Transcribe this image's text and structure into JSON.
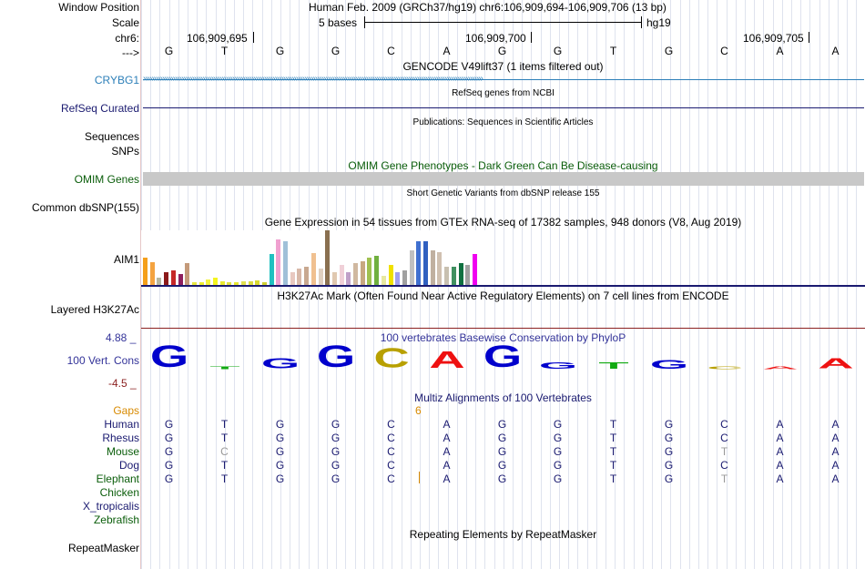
{
  "header": {
    "window_position_label": "Window Position",
    "scale_label": "Scale",
    "chrom_label": "chr6:",
    "strand_label": "--->",
    "assembly_text": "Human Feb. 2009 (GRCh37/hg19)   chr6:106,909,694-106,909,706 (13 bp)",
    "scale_text": "5 bases",
    "scale_db": "hg19",
    "coords": [
      "106,909,695",
      "106,909,700",
      "106,909,705"
    ]
  },
  "bases": [
    "G",
    "T",
    "G",
    "G",
    "C",
    "A",
    "G",
    "G",
    "T",
    "G",
    "C",
    "A",
    "A"
  ],
  "tracks": {
    "gencode_title": "GENCODE V49lift37 (1 items filtered out)",
    "gene_label": "CRYBG1",
    "refseq_title": "RefSeq genes from NCBI",
    "refseq_label": "RefSeq Curated",
    "pubs_title": "Publications: Sequences in Scientific Articles",
    "sequences_label": "Sequences",
    "snps_label": "SNPs",
    "omim_title": "OMIM Gene Phenotypes - Dark Green Can Be Disease-causing",
    "omim_label": "OMIM Genes",
    "dbsnp_title": "Short Genetic Variants from dbSNP release 155",
    "dbsnp_label": "Common dbSNP(155)",
    "gtex_title": "Gene Expression in 54 tissues from GTEx RNA-seq of 17382 samples, 948 donors (V8, Aug 2019)",
    "gtex_label": "AIM1",
    "h3k27_title": "H3K27Ac Mark (Often Found Near Active Regulatory Elements) on 7 cell lines from ENCODE",
    "h3k27_label": "Layered H3K27Ac",
    "cons_title": "100 vertebrates Basewise Conservation by PhyloP",
    "cons_label": "100 Vert. Cons",
    "cons_max": "4.88 _",
    "cons_min": "-4.5 _",
    "multiz_title": "Multiz Alignments of 100 Vertebrates",
    "gaps_label": "Gaps",
    "gap_count": "6",
    "repeat_title": "Repeating Elements by RepeatMasker",
    "repeat_label": "RepeatMasker"
  },
  "species": [
    {
      "name": "Human",
      "seq": [
        "G",
        "T",
        "G",
        "G",
        "C",
        "A",
        "G",
        "G",
        "T",
        "G",
        "C",
        "A",
        "A"
      ]
    },
    {
      "name": "Rhesus",
      "seq": [
        "G",
        "T",
        "G",
        "G",
        "C",
        "A",
        "G",
        "G",
        "T",
        "G",
        "C",
        "A",
        "A"
      ]
    },
    {
      "name": "Mouse",
      "seq": [
        "G",
        "C",
        "G",
        "G",
        "C",
        "A",
        "G",
        "G",
        "T",
        "G",
        "T",
        "A",
        "A"
      ]
    },
    {
      "name": "Dog",
      "seq": [
        "G",
        "T",
        "G",
        "G",
        "C",
        "A",
        "G",
        "G",
        "T",
        "G",
        "C",
        "A",
        "A"
      ]
    },
    {
      "name": "Elephant",
      "seq": [
        "G",
        "T",
        "G",
        "G",
        "C",
        "A",
        "G",
        "G",
        "T",
        "G",
        "T",
        "A",
        "A"
      ]
    },
    {
      "name": "Chicken",
      "seq": []
    },
    {
      "name": "X_tropicalis",
      "seq": []
    },
    {
      "name": "Zebrafish",
      "seq": []
    }
  ],
  "colors": {
    "gene_blue": "#2c7fb8",
    "navy": "#1a1a70",
    "omim_green": "#0a5d0a",
    "omim_bar": "#c8c8c8",
    "gaps_orange": "#d88a00",
    "cons_max": "#333399",
    "cons_min": "#8b2020",
    "base_G": "#0000cc",
    "base_C": "#b8a000",
    "base_A": "#ee1111",
    "base_T": "#11aa11"
  },
  "gtex_bars": [
    {
      "h": 30,
      "c": "#f59f1b"
    },
    {
      "h": 25,
      "c": "#f4a340"
    },
    {
      "h": 8,
      "c": "#b7b7a0"
    },
    {
      "h": 14,
      "c": "#8b1a1a"
    },
    {
      "h": 16,
      "c": "#c62828"
    },
    {
      "h": 12,
      "c": "#8e1f5e"
    },
    {
      "h": 24,
      "c": "#c49a7a"
    },
    {
      "h": 3,
      "c": "#e8e840"
    },
    {
      "h": 3,
      "c": "#ecec30"
    },
    {
      "h": 6,
      "c": "#f2f240"
    },
    {
      "h": 8,
      "c": "#f4f420"
    },
    {
      "h": 4,
      "c": "#eaea30"
    },
    {
      "h": 3,
      "c": "#e0e040"
    },
    {
      "h": 3,
      "c": "#e8e830"
    },
    {
      "h": 4,
      "c": "#e0e050"
    },
    {
      "h": 4,
      "c": "#dada40"
    },
    {
      "h": 5,
      "c": "#d8d830"
    },
    {
      "h": 3,
      "c": "#d0d030"
    },
    {
      "h": 34,
      "c": "#20c0c0"
    },
    {
      "h": 50,
      "c": "#f0a0d0"
    },
    {
      "h": 48,
      "c": "#a0c0d8"
    },
    {
      "h": 14,
      "c": "#e8c8c0"
    },
    {
      "h": 18,
      "c": "#d8b8a8"
    },
    {
      "h": 20,
      "c": "#c8a890"
    },
    {
      "h": 35,
      "c": "#f0c090"
    },
    {
      "h": 18,
      "c": "#e0d0c0"
    },
    {
      "h": 60,
      "c": "#8a7050"
    },
    {
      "h": 14,
      "c": "#e0c8b0"
    },
    {
      "h": 22,
      "c": "#f0d0d8"
    },
    {
      "h": 14,
      "c": "#c0a0c8"
    },
    {
      "h": 24,
      "c": "#d0b8a0"
    },
    {
      "h": 26,
      "c": "#c8a880"
    },
    {
      "h": 30,
      "c": "#a0c050"
    },
    {
      "h": 32,
      "c": "#70b040"
    },
    {
      "h": 10,
      "c": "#e8e8a0"
    },
    {
      "h": 22,
      "c": "#f0e000"
    },
    {
      "h": 14,
      "c": "#a0a0f0"
    },
    {
      "h": 16,
      "c": "#a0a0a0"
    },
    {
      "h": 38,
      "c": "#c0c0c0"
    },
    {
      "h": 48,
      "c": "#4070d0"
    },
    {
      "h": 48,
      "c": "#3060c0"
    },
    {
      "h": 38,
      "c": "#c0b0a0"
    },
    {
      "h": 36,
      "c": "#d0c0b0"
    },
    {
      "h": 20,
      "c": "#c8c0b0"
    },
    {
      "h": 20,
      "c": "#409060"
    },
    {
      "h": 24,
      "c": "#107040"
    },
    {
      "h": 22,
      "c": "#a0a0a0"
    },
    {
      "h": 34,
      "c": "#f000f0"
    }
  ],
  "cons_heights": [
    1.0,
    0.12,
    0.45,
    1.0,
    0.9,
    0.75,
    1.0,
    0.3,
    0.3,
    0.4,
    0.12,
    0.12,
    0.45
  ],
  "cons_dirs": [
    "up",
    "up",
    "up",
    "up",
    "up",
    "up",
    "up",
    "up",
    "up",
    "up",
    "up",
    "down",
    "up"
  ]
}
